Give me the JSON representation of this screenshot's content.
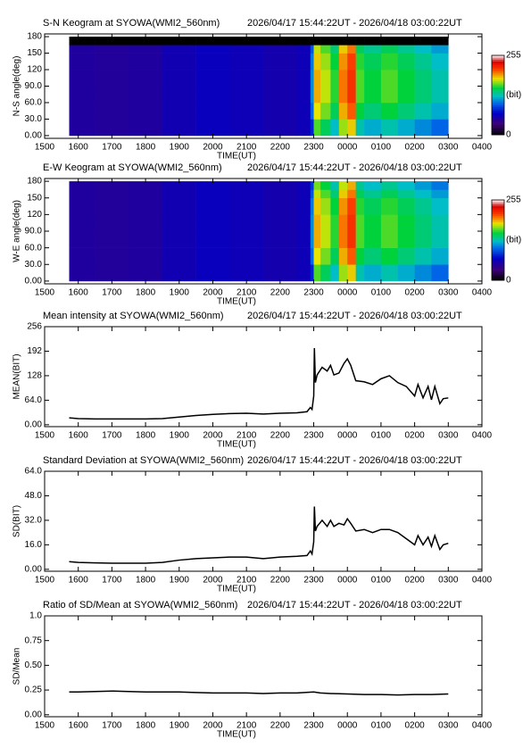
{
  "chart_data": [
    {
      "type": "heatmap",
      "title": "S-N Keogram at SYOWA(WMI2_560nm)",
      "subtitle": "2026/04/17 15:44:22UT - 2026/04/18 03:00:22UT",
      "xlabel": "TIME(UT)",
      "ylabel": "N-S angle(deg)",
      "colormap": "rainbow",
      "zlim": [
        0,
        255
      ],
      "colorbar": {
        "ticks": [
          255,
          0
        ],
        "label": "(bit)"
      },
      "x_edges": [
        15.73,
        16.5,
        17.5,
        18.5,
        19.5,
        20.5,
        21.5,
        22.5,
        22.9,
        23.0,
        23.2,
        23.5,
        23.75,
        24.0,
        24.25,
        24.5,
        25.0,
        25.5,
        26.0,
        26.5,
        27.0
      ],
      "y_edges": [
        0,
        30,
        60,
        90,
        120,
        150,
        165,
        180
      ],
      "z": [
        [
          52,
          50,
          52,
          60,
          65,
          62,
          58,
          62,
          80,
          160,
          145,
          125,
          170,
          185,
          130,
          120,
          130,
          120,
          110,
          100
        ],
        [
          52,
          50,
          52,
          60,
          65,
          62,
          58,
          62,
          100,
          180,
          165,
          145,
          190,
          205,
          150,
          140,
          150,
          140,
          130,
          120
        ],
        [
          52,
          50,
          52,
          60,
          65,
          62,
          58,
          62,
          110,
          190,
          175,
          155,
          200,
          215,
          160,
          150,
          160,
          150,
          140,
          130
        ],
        [
          52,
          50,
          52,
          60,
          65,
          62,
          58,
          62,
          110,
          190,
          175,
          155,
          200,
          215,
          160,
          150,
          160,
          150,
          140,
          130
        ],
        [
          52,
          50,
          52,
          60,
          65,
          62,
          58,
          62,
          105,
          185,
          170,
          150,
          195,
          210,
          155,
          145,
          155,
          145,
          135,
          125
        ],
        [
          52,
          50,
          52,
          60,
          65,
          62,
          58,
          62,
          95,
          175,
          160,
          140,
          185,
          200,
          145,
          135,
          145,
          135,
          125,
          115
        ],
        [
          0,
          0,
          0,
          0,
          0,
          0,
          0,
          0,
          0,
          0,
          0,
          0,
          0,
          0,
          0,
          0,
          0,
          0,
          0,
          0
        ]
      ],
      "xlim": [
        15,
        28
      ],
      "xticks": [
        {
          "value": 15,
          "label": "1500"
        },
        {
          "value": 16,
          "label": "1600"
        },
        {
          "value": 17,
          "label": "1700"
        },
        {
          "value": 18,
          "label": "1800"
        },
        {
          "value": 19,
          "label": "1900"
        },
        {
          "value": 20,
          "label": "2000"
        },
        {
          "value": 21,
          "label": "2100"
        },
        {
          "value": 22,
          "label": "2200"
        },
        {
          "value": 23,
          "label": "2300"
        },
        {
          "value": 24,
          "label": "0000"
        },
        {
          "value": 25,
          "label": "0100"
        },
        {
          "value": 26,
          "label": "0200"
        },
        {
          "value": 27,
          "label": "0300"
        },
        {
          "value": 28,
          "label": "0400"
        }
      ],
      "ylim": [
        -5,
        185
      ],
      "yticks": [
        {
          "value": 0,
          "label": "0.00"
        },
        {
          "value": 30,
          "label": "30.0"
        },
        {
          "value": 60,
          "label": "60.0"
        },
        {
          "value": 90,
          "label": "90.0"
        },
        120,
        150,
        180
      ]
    },
    {
      "type": "heatmap",
      "title": "E-W Keogram at SYOWA(WMI2_560nm)",
      "subtitle": "2026/04/17 15:44:22UT - 2026/04/18 03:00:22UT",
      "xlabel": "TIME(UT)",
      "ylabel": "W-E angle(deg)",
      "colormap": "rainbow",
      "zlim": [
        0,
        255
      ],
      "colorbar": {
        "ticks": [
          255,
          0
        ],
        "label": "(bit)"
      },
      "x_edges": [
        15.73,
        16.5,
        17.5,
        18.5,
        19.5,
        20.5,
        21.5,
        22.5,
        22.9,
        23.0,
        23.2,
        23.5,
        23.75,
        24.0,
        24.25,
        24.5,
        25.0,
        25.5,
        26.0,
        26.5,
        27.0
      ],
      "y_edges": [
        0,
        30,
        60,
        90,
        120,
        150,
        165,
        180
      ],
      "z": [
        [
          52,
          50,
          52,
          60,
          65,
          62,
          58,
          62,
          80,
          160,
          145,
          125,
          170,
          185,
          130,
          120,
          130,
          120,
          110,
          100
        ],
        [
          52,
          50,
          52,
          60,
          65,
          62,
          58,
          62,
          100,
          180,
          165,
          145,
          190,
          205,
          150,
          140,
          150,
          140,
          130,
          120
        ],
        [
          52,
          50,
          52,
          60,
          65,
          62,
          58,
          62,
          110,
          190,
          175,
          155,
          200,
          215,
          160,
          150,
          160,
          150,
          140,
          130
        ],
        [
          52,
          50,
          52,
          60,
          65,
          62,
          58,
          62,
          110,
          190,
          175,
          155,
          200,
          215,
          160,
          150,
          160,
          150,
          140,
          130
        ],
        [
          52,
          50,
          52,
          60,
          65,
          62,
          58,
          62,
          105,
          185,
          170,
          150,
          195,
          210,
          155,
          145,
          155,
          145,
          135,
          125
        ],
        [
          52,
          50,
          52,
          60,
          65,
          62,
          58,
          62,
          95,
          175,
          160,
          140,
          185,
          200,
          145,
          135,
          145,
          135,
          125,
          115
        ],
        [
          52,
          50,
          52,
          60,
          65,
          62,
          58,
          62,
          85,
          165,
          150,
          130,
          175,
          190,
          135,
          125,
          135,
          125,
          115,
          105
        ]
      ],
      "xlim": [
        15,
        28
      ],
      "xticks": [
        {
          "value": 15,
          "label": "1500"
        },
        {
          "value": 16,
          "label": "1600"
        },
        {
          "value": 17,
          "label": "1700"
        },
        {
          "value": 18,
          "label": "1800"
        },
        {
          "value": 19,
          "label": "1900"
        },
        {
          "value": 20,
          "label": "2000"
        },
        {
          "value": 21,
          "label": "2100"
        },
        {
          "value": 22,
          "label": "2200"
        },
        {
          "value": 23,
          "label": "2300"
        },
        {
          "value": 24,
          "label": "0000"
        },
        {
          "value": 25,
          "label": "0100"
        },
        {
          "value": 26,
          "label": "0200"
        },
        {
          "value": 27,
          "label": "0300"
        },
        {
          "value": 28,
          "label": "0400"
        }
      ],
      "ylim": [
        -5,
        185
      ],
      "yticks": [
        {
          "value": 0,
          "label": "0.00"
        },
        {
          "value": 30,
          "label": "30.0"
        },
        {
          "value": 60,
          "label": "60.0"
        },
        {
          "value": 90,
          "label": "90.0"
        },
        120,
        150,
        180
      ]
    },
    {
      "type": "line",
      "title": "Mean intensity at SYOWA(WMI2_560nm)",
      "subtitle": "2026/04/17 15:44:22UT - 2026/04/18 03:00:22UT",
      "xlabel": "TIME(UT)",
      "ylabel": "MEAN(BIT)",
      "color": "#000000",
      "x": [
        15.73,
        16,
        16.5,
        17,
        17.5,
        18,
        18.5,
        19,
        19.5,
        20,
        20.5,
        21,
        21.5,
        22,
        22.5,
        22.8,
        22.9,
        22.95,
        23.0,
        23.02,
        23.05,
        23.1,
        23.25,
        23.4,
        23.5,
        23.6,
        23.75,
        23.9,
        24.0,
        24.1,
        24.25,
        24.5,
        24.75,
        25.0,
        25.25,
        25.5,
        25.75,
        26.0,
        26.1,
        26.25,
        26.4,
        26.5,
        26.6,
        26.75,
        26.85,
        27.0
      ],
      "values": [
        18,
        16,
        15,
        15,
        15,
        15,
        16,
        20,
        24,
        27,
        29,
        30,
        28,
        30,
        31,
        34,
        45,
        40,
        75,
        200,
        110,
        130,
        150,
        140,
        155,
        130,
        135,
        160,
        172,
        155,
        115,
        112,
        105,
        120,
        128,
        110,
        100,
        75,
        105,
        70,
        100,
        65,
        100,
        55,
        68,
        70
      ],
      "xlim": [
        15,
        28
      ],
      "xticks": [
        {
          "value": 15,
          "label": "1500"
        },
        {
          "value": 16,
          "label": "1600"
        },
        {
          "value": 17,
          "label": "1700"
        },
        {
          "value": 18,
          "label": "1800"
        },
        {
          "value": 19,
          "label": "1900"
        },
        {
          "value": 20,
          "label": "2000"
        },
        {
          "value": 21,
          "label": "2100"
        },
        {
          "value": 22,
          "label": "2200"
        },
        {
          "value": 23,
          "label": "2300"
        },
        {
          "value": 24,
          "label": "0000"
        },
        {
          "value": 25,
          "label": "0100"
        },
        {
          "value": 26,
          "label": "0200"
        },
        {
          "value": 27,
          "label": "0300"
        },
        {
          "value": 28,
          "label": "0400"
        }
      ],
      "ylim": [
        -5,
        256
      ],
      "yticks": [
        {
          "value": 0,
          "label": "0.00"
        },
        {
          "value": 64,
          "label": "64.0"
        },
        128,
        192,
        256
      ]
    },
    {
      "type": "line",
      "title": "Standard Deviation at SYOWA(WMI2_560nm)",
      "subtitle": "2026/04/17 15:44:22UT - 2026/04/18 03:00:22UT",
      "xlabel": "TIME(UT)",
      "ylabel": "SD(BIT)",
      "color": "#000000",
      "x": [
        15.73,
        16,
        16.5,
        17,
        17.5,
        18,
        18.5,
        19,
        19.5,
        20,
        20.5,
        21,
        21.5,
        22,
        22.5,
        22.8,
        22.9,
        22.95,
        23.0,
        23.02,
        23.05,
        23.1,
        23.25,
        23.4,
        23.5,
        23.6,
        23.75,
        23.9,
        24.0,
        24.1,
        24.25,
        24.5,
        24.75,
        25.0,
        25.25,
        25.5,
        25.75,
        26.0,
        26.1,
        26.25,
        26.4,
        26.5,
        26.6,
        26.75,
        26.85,
        27.0
      ],
      "values": [
        5,
        4.5,
        4.2,
        4,
        4,
        4,
        4.5,
        6,
        7,
        7.5,
        8,
        8,
        7,
        8,
        8.5,
        9,
        12,
        10,
        18,
        41,
        25,
        28,
        32,
        28,
        32,
        28,
        30,
        29,
        33,
        30,
        25,
        26,
        24,
        26,
        26,
        24,
        20,
        16,
        22,
        16,
        21,
        15,
        22,
        13,
        16,
        17
      ],
      "xlim": [
        15,
        28
      ],
      "xticks": [
        {
          "value": 15,
          "label": "1500"
        },
        {
          "value": 16,
          "label": "1600"
        },
        {
          "value": 17,
          "label": "1700"
        },
        {
          "value": 18,
          "label": "1800"
        },
        {
          "value": 19,
          "label": "1900"
        },
        {
          "value": 20,
          "label": "2000"
        },
        {
          "value": 21,
          "label": "2100"
        },
        {
          "value": 22,
          "label": "2200"
        },
        {
          "value": 23,
          "label": "2300"
        },
        {
          "value": 24,
          "label": "0000"
        },
        {
          "value": 25,
          "label": "0100"
        },
        {
          "value": 26,
          "label": "0200"
        },
        {
          "value": 27,
          "label": "0300"
        },
        {
          "value": 28,
          "label": "0400"
        }
      ],
      "ylim": [
        -1.25,
        64
      ],
      "yticks": [
        {
          "value": 0,
          "label": "0.00"
        },
        {
          "value": 16,
          "label": "16.0"
        },
        {
          "value": 32,
          "label": "32.0"
        },
        {
          "value": 48,
          "label": "48.0"
        },
        {
          "value": 64,
          "label": "64.0"
        }
      ]
    },
    {
      "type": "line",
      "title": "Ratio of SD/Mean at SYOWA(WMI2_560nm)",
      "subtitle": "2026/04/17 15:44:22UT - 2026/04/18 03:00:22UT",
      "xlabel": "TIME(UT)",
      "ylabel": "SD/Mean",
      "color": "#000000",
      "x": [
        15.73,
        16,
        16.5,
        17,
        17.5,
        18,
        18.5,
        19,
        19.5,
        20,
        20.5,
        21,
        21.5,
        22,
        22.5,
        23.0,
        23.2,
        23.5,
        24.0,
        24.5,
        25.0,
        25.5,
        26.0,
        26.5,
        27.0
      ],
      "values": [
        0.23,
        0.23,
        0.235,
        0.24,
        0.235,
        0.23,
        0.23,
        0.23,
        0.225,
        0.22,
        0.22,
        0.22,
        0.215,
        0.22,
        0.22,
        0.23,
        0.22,
        0.215,
        0.21,
        0.205,
        0.205,
        0.2,
        0.205,
        0.205,
        0.21
      ],
      "xlim": [
        15,
        28
      ],
      "xticks": [
        {
          "value": 15,
          "label": "1500"
        },
        {
          "value": 16,
          "label": "1600"
        },
        {
          "value": 17,
          "label": "1700"
        },
        {
          "value": 18,
          "label": "1800"
        },
        {
          "value": 19,
          "label": "1900"
        },
        {
          "value": 20,
          "label": "2000"
        },
        {
          "value": 21,
          "label": "2100"
        },
        {
          "value": 22,
          "label": "2200"
        },
        {
          "value": 23,
          "label": "2300"
        },
        {
          "value": 24,
          "label": "0000"
        },
        {
          "value": 25,
          "label": "0100"
        },
        {
          "value": 26,
          "label": "0200"
        },
        {
          "value": 27,
          "label": "0300"
        },
        {
          "value": 28,
          "label": "0400"
        }
      ],
      "ylim": [
        -0.02,
        1.0
      ],
      "yticks": [
        {
          "value": 0,
          "label": "0.00"
        },
        0.25,
        {
          "value": 0.5,
          "label": "0.50"
        },
        0.75,
        {
          "value": 1,
          "label": "1.0"
        }
      ]
    }
  ]
}
